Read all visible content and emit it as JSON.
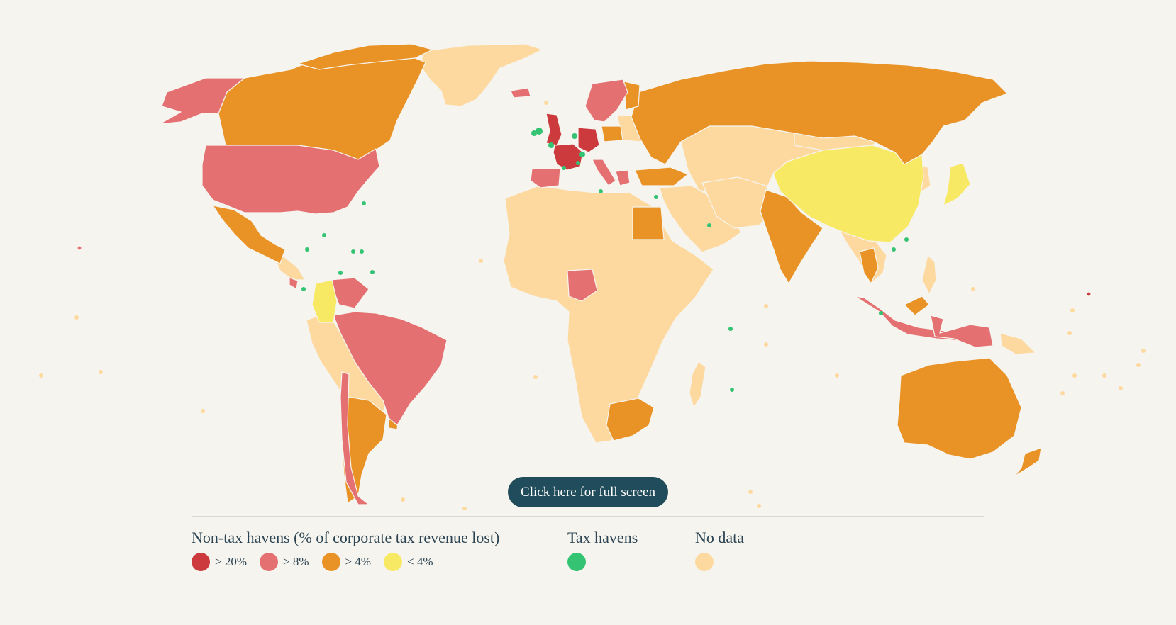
{
  "button": {
    "fullscreen_label": "Click here for full screen"
  },
  "legend": {
    "nontax": {
      "title": "Non-tax havens (% of corporate tax revenue lost)",
      "items": [
        {
          "label": "> 20%",
          "color": "#cc3a3d"
        },
        {
          "label": "> 8%",
          "color": "#e57072"
        },
        {
          "label": "> 4%",
          "color": "#e99326"
        },
        {
          "label": "< 4%",
          "color": "#f8e965"
        }
      ]
    },
    "havens": {
      "title": "Tax havens",
      "color": "#33c373"
    },
    "nodata": {
      "title": "No data",
      "color": "#fdd9a0"
    }
  },
  "categories": {
    "gt20": [
      "United Kingdom",
      "France",
      "Germany"
    ],
    "gt8": [
      "United States",
      "Alaska",
      "Brazil",
      "Chile",
      "Venezuela",
      "Nigeria",
      "Spain",
      "Italy",
      "Sweden",
      "Norway",
      "Indonesia",
      "Costa Rica",
      "Greece",
      "Papua New Guinea",
      "Iceland"
    ],
    "gt4": [
      "Canada",
      "Mexico",
      "Argentina",
      "Russia",
      "India",
      "Egypt",
      "South Africa",
      "Australia",
      "New Zealand",
      "Turkey",
      "Poland",
      "Thailand",
      "Malaysia",
      "Finland",
      "Uruguay"
    ],
    "lt4": [
      "China",
      "Colombia",
      "Japan"
    ]
  }
}
